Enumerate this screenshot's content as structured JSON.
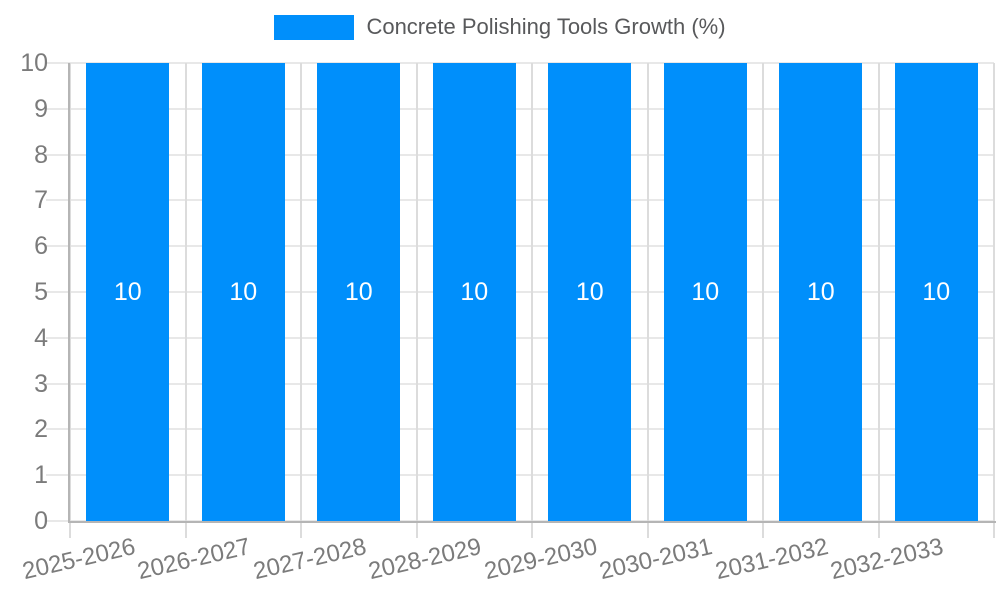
{
  "chart_data": {
    "type": "bar",
    "title": "Concrete Polishing Tools Growth (%)",
    "categories": [
      "2025-2026",
      "2026-2027",
      "2027-2028",
      "2028-2029",
      "2029-2030",
      "2030-2031",
      "2031-2032",
      "2032-2033"
    ],
    "series": [
      {
        "name": "Concrete Polishing Tools Growth (%)",
        "values": [
          10,
          10,
          10,
          10,
          10,
          10,
          10,
          10
        ],
        "data_labels": [
          "10",
          "10",
          "10",
          "10",
          "10",
          "10",
          "10",
          "10"
        ]
      }
    ],
    "xlabel": "",
    "ylabel": "",
    "ylim": [
      0,
      10
    ],
    "yticks": [
      0,
      1,
      2,
      3,
      4,
      5,
      6,
      7,
      8,
      9,
      10
    ],
    "grid": true,
    "legend_position": "top",
    "x_label_rotation_deg": -13
  },
  "colors": {
    "bar": "#008FFB",
    "legend_text": "#58595b",
    "axis_text": "#7b7b7b",
    "data_label": "#ffffff",
    "grid_h": "#e8e8e8",
    "grid_v": "#dcdcdc",
    "axis_line": "#b5b5b5"
  }
}
